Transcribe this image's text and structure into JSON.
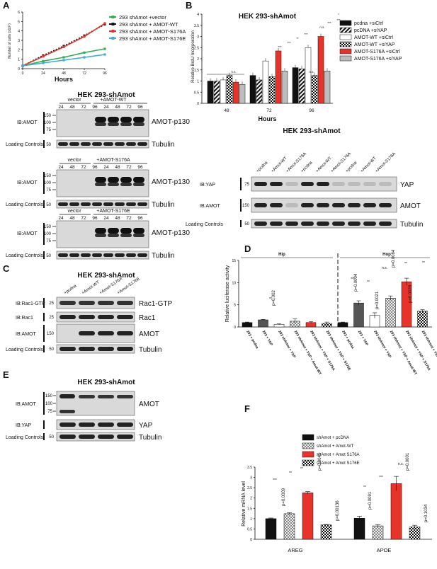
{
  "panels": {
    "A": {
      "label": "A",
      "chart": {
        "type": "line",
        "xlabel": "Hours",
        "ylabel": "Number of cells (x10⁵)",
        "x": [
          0,
          24,
          48,
          72,
          96
        ],
        "yticks": [
          "0",
          "1",
          "2",
          "3",
          "4",
          "5",
          "6"
        ],
        "ylim": [
          0,
          6
        ],
        "series": [
          {
            "name": "293 shAmot +vector",
            "color": "#2fb24a",
            "values": [
              0.3,
              0.8,
              1.2,
              1.7,
              2.1
            ]
          },
          {
            "name": "293 shAmot + AMOT-WT",
            "color": "#111111",
            "values": [
              0.3,
              1.4,
              2.4,
              3.5,
              4.7
            ]
          },
          {
            "name": "293 shAmot + AMOT-S176A",
            "color": "#e8332a",
            "values": [
              0.3,
              1.3,
              2.3,
              3.4,
              4.8
            ]
          },
          {
            "name": "293 shAmot + AMOT-S176E",
            "color": "#3fa9e0",
            "values": [
              0.3,
              0.6,
              0.9,
              1.2,
              1.5
            ]
          }
        ]
      },
      "blot_title": "HEK 293-shAmot",
      "blots": [
        {
          "header_left": "vector",
          "header_right": "+AMOT-WT",
          "lanes": [
            "24",
            "48",
            "72",
            "96",
            "24",
            "48",
            "72",
            "96"
          ],
          "ib": "IB:AMOT",
          "mw": [
            "150",
            "100",
            "75"
          ],
          "band": "AMOT-p130",
          "lc": "Loading Controls",
          "lc_mw": "50",
          "lc_band": "Tubulin"
        },
        {
          "header_left": "vector",
          "header_right": "+AMOT-S176A",
          "lanes": [
            "24",
            "48",
            "72",
            "96",
            "24",
            "48",
            "72",
            "96"
          ],
          "ib": "IB:AMOT",
          "mw": [
            "150",
            "100",
            "75"
          ],
          "band": "AMOT-p130",
          "lc": "Loading Controls",
          "lc_mw": "50",
          "lc_band": "Tubulin"
        },
        {
          "header_left": "vector",
          "header_right": "+AMOT-S176E",
          "lanes": [
            "24",
            "48",
            "72",
            "96",
            "24",
            "48",
            "72",
            "96"
          ],
          "ib": "IB:AMOT",
          "mw": [
            "150",
            "100",
            "75"
          ],
          "band": "AMOT-p130",
          "lc": "Loading Controls",
          "lc_mw": "50",
          "lc_band": "Tubulin"
        }
      ]
    },
    "B": {
      "label": "B",
      "chart": {
        "type": "bar",
        "title": "HEK 293-shAmot",
        "xlabel": "Hours",
        "ylabel": "Relative BrdU Incorporation",
        "categories": [
          "48",
          "72",
          "96"
        ],
        "yticks": [
          "0",
          "0.5",
          "1",
          "1.5",
          "2",
          "2.5",
          "3",
          "3.5",
          "4"
        ],
        "ylim": [
          0,
          4
        ],
        "series": [
          {
            "name": "pcdna +siCtrl",
            "fill": "#111111",
            "pattern": "solid",
            "values": [
              1.0,
              1.25,
              1.6
            ]
          },
          {
            "name": "pcDNA +siYAP",
            "fill": "#111111",
            "pattern": "hatch",
            "values": [
              1.0,
              1.05,
              1.55
            ]
          },
          {
            "name": "AMOT-WT +siCtrl",
            "fill": "#ffffff",
            "pattern": "solid",
            "values": [
              1.05,
              1.9,
              2.5
            ]
          },
          {
            "name": "AMOT-WT +siYAP",
            "fill": "#111111",
            "pattern": "check",
            "values": [
              1.25,
              1.2,
              1.25
            ]
          },
          {
            "name": "AMOT-S176A +siCtrl",
            "fill": "#e8332a",
            "pattern": "solid",
            "values": [
              0.95,
              2.35,
              3.0
            ]
          },
          {
            "name": "AMOT-S176A +siYAP",
            "fill": "#bdbdbd",
            "pattern": "solid",
            "values": [
              0.85,
              1.45,
              1.45
            ]
          }
        ],
        "annotations": [
          "n.s.",
          "n.s.",
          "***",
          "***",
          "**",
          "***",
          "n.s.",
          "***",
          "*",
          "***"
        ]
      },
      "blot_title": "HEK 293-shAmot",
      "lanes": [
        "+pcdna",
        "+Amot-WT",
        "+Amot-S176A",
        "+pcdna",
        "+Amot-WT",
        "+Amot-S176A",
        "+pcdna",
        "+Amot-WT",
        "+Amot-S176A"
      ],
      "rows": [
        {
          "ib": "IB:YAP",
          "mw": "75",
          "band": "YAP"
        },
        {
          "ib": "IB:AMOT",
          "mw": "150",
          "band": "AMOT"
        },
        {
          "ib": "Loading Controls",
          "mw": "50",
          "band": "Tubulin"
        }
      ]
    },
    "C": {
      "label": "C",
      "blot_title": "HEK 293-shAmot",
      "lanes": [
        "+pcdna",
        "+Amot-WT",
        "+Amot-S176A",
        "+Amot-S176E"
      ],
      "rows": [
        {
          "ib": "IB:Rac1-GTP",
          "mw": "25",
          "band": "Rac1-GTP"
        },
        {
          "ib": "IB:Rac1",
          "mw": "25",
          "band": "Rac1"
        },
        {
          "ib": "IB:AMOT",
          "mw": "150",
          "band": "AMOT"
        },
        {
          "ib": "Loading Controls",
          "mw": "50",
          "band": "Tubulin"
        }
      ]
    },
    "D": {
      "label": "D",
      "chart": {
        "type": "bar",
        "ylabel": "Relative luciferase activity",
        "group_labels": [
          "Hip",
          "Hop"
        ],
        "yticks": [
          "0",
          "5",
          "10",
          "15"
        ],
        "ylim": [
          0,
          15
        ],
        "categories": [
          "293 + pcdna",
          "293 + YAP",
          "293 shAmot + YAP",
          "293 shAmot + YAP + Amot-WT",
          "293 shAmot + YAP + S176A",
          "293 shAmot + YAP + S176E",
          "293 + pcdna",
          "293 + YAP",
          "293 shAmot + YAP",
          "293 shAmot + YAP + Amot-WT",
          "293 shAmot + YAP + S176A",
          "293 shAmot + YAP + S176E"
        ],
        "values": [
          1.0,
          1.6,
          0.6,
          1.3,
          1.0,
          0.8,
          1.0,
          5.4,
          2.6,
          6.5,
          10.2,
          3.6
        ],
        "errors": [
          0.1,
          0.1,
          0.1,
          0.5,
          0.2,
          0.3,
          0.1,
          0.5,
          0.6,
          0.5,
          0.8,
          0.3
        ],
        "fills": [
          "#111111",
          "#555555",
          "#ffffff",
          "#bbbbbb",
          "#e8332a",
          "#888888",
          "#111111",
          "#555555",
          "#ffffff",
          "#bbbbbb",
          "#e8332a",
          "#888888"
        ],
        "pvalues": [
          "p=0.002",
          "p=0.0004",
          "p=0.0021",
          "p=0.0084",
          "p=0.0028"
        ],
        "annotations": [
          "**",
          "***",
          "**",
          "n.s.",
          "**",
          "**"
        ]
      }
    },
    "E": {
      "label": "E",
      "blot_title": "HEK 293-shAmot",
      "rows": [
        {
          "ib": "IB:AMOT",
          "mw": [
            "150",
            "100",
            "75"
          ],
          "band": "AMOT"
        },
        {
          "ib": "IB:YAP",
          "mw": "",
          "band": "YAP"
        },
        {
          "ib": "Loading Controls",
          "mw": "50",
          "band": "Tubulin"
        }
      ]
    },
    "F": {
      "label": "F",
      "chart": {
        "type": "bar",
        "ylabel": "Relative mRNA level",
        "categories": [
          "AREG",
          "APOE"
        ],
        "yticks": [
          "0",
          "0.5",
          "1",
          "1.5",
          "2",
          "2.5",
          "3",
          "3.5"
        ],
        "ylim": [
          0,
          3.5
        ],
        "series": [
          {
            "name": "shAmot + pcDNA",
            "fill": "#111111",
            "pattern": "solid",
            "values": [
              1.0,
              1.02
            ]
          },
          {
            "name": "shAmot + Amot-WT",
            "fill": "#bbbbbb",
            "pattern": "check",
            "values": [
              1.24,
              0.65
            ]
          },
          {
            "name": "shAmot + Amot S176A",
            "fill": "#e8332a",
            "pattern": "solid",
            "values": [
              2.25,
              2.7
            ]
          },
          {
            "name": "shAmot + Amot S176E",
            "fill": "#111111",
            "pattern": "check",
            "values": [
              0.7,
              0.6
            ]
          }
        ],
        "errors": [
          [
            0.03,
            0.05,
            0.06,
            0.02
          ],
          [
            0.1,
            0.06,
            0.35,
            0.08
          ]
        ],
        "pvalues": [
          "p=0.0009",
          "p=0.0041",
          "p=0.00136",
          "p=0.0091",
          "p=0.0001",
          "p=0.1034"
        ],
        "annotations": [
          "***",
          "**",
          "**",
          "**",
          "***",
          "n.s."
        ]
      }
    }
  }
}
